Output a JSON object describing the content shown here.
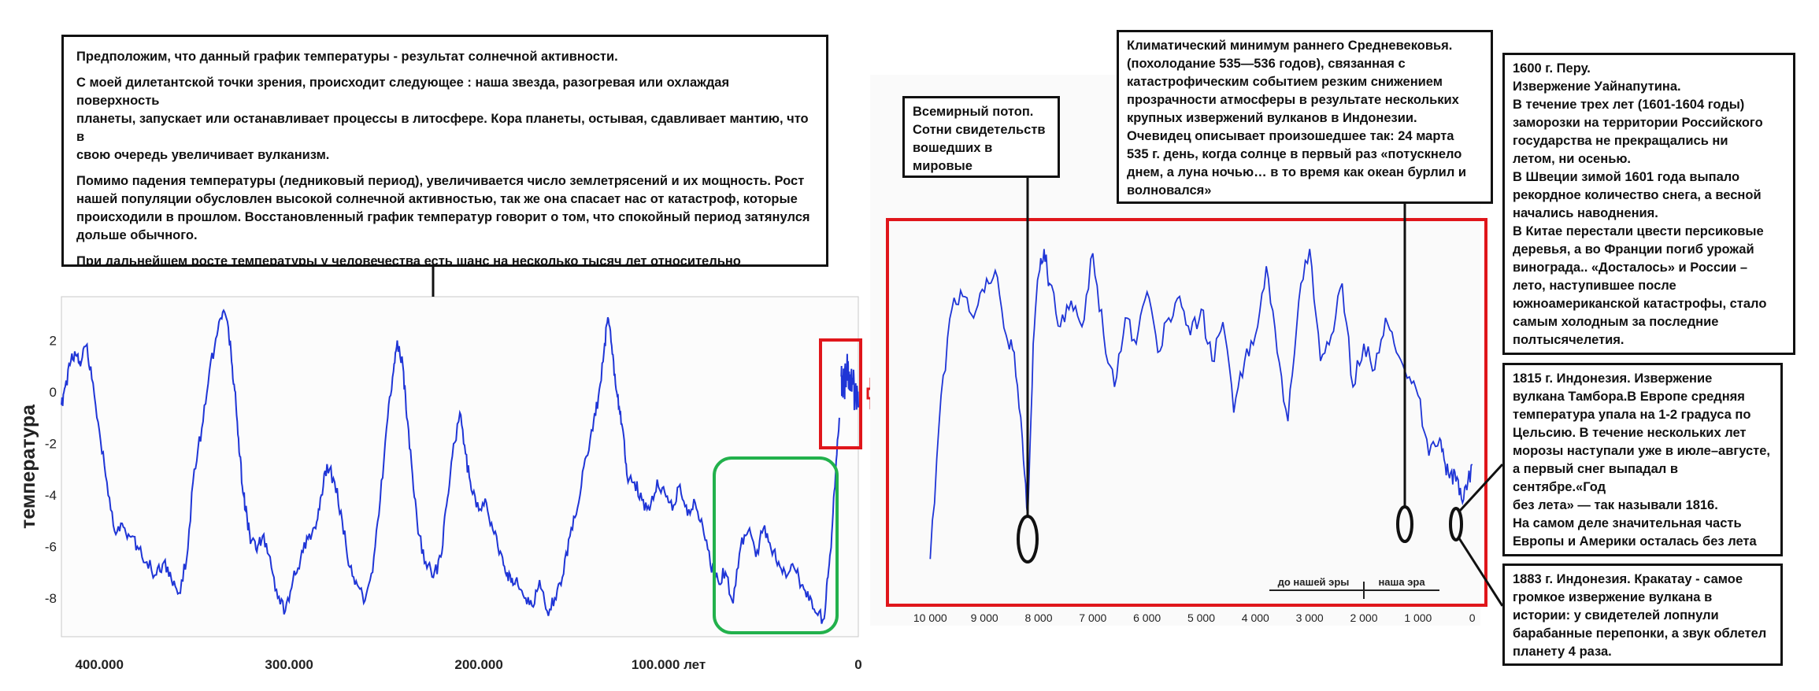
{
  "notes": {
    "main": {
      "p1": "Предположим, что данный график температуры - результат солнечной активности.",
      "p2": "С моей дилетантской точки зрения, происходит следующее : наша звезда, разогревая или охлаждая поверхность\nпланеты, запускает или останавливает процессы в литосфере. Кора планеты, остывая, сдавливает мантию, что в\nсвою очередь увеличивает вулканизм.",
      "p3": "Помимо падения температуры (ледниковый период), увеличивается число землетрясений и их мощность. Рост\nнашей популяции обусловлен высокой солнечной активностью, так же она спасает нас от катастроф, которые\nпроисходили в прошлом. Восстановленный график температур говорит о том, что спокойный период затянулся\nдольше обычного.",
      "p4": "При дальнейшем росте температуры  у человечества есть шанс на несколько тысяч лет  относительно\nспокойного развития."
    },
    "flood": "Всемирный потоп.\nСотни свидетельств\nвошедших в мировые\nрелигии",
    "medieval": "Климатический минимум раннего Средневековья.\n(похолодание 535—536 годов), связанная с\nкатастрофическим событием резким  снижением\nпрозрачности атмосферы в результате нескольких\nкрупных извержений вулканов в Индонезии.\nОчевидец описывает произошедшее так:  24 марта\n535 г. день, когда солнце в первый раз «потускнело\nднем, а луна ночью… в то время как океан бурлил и\nволновался»",
    "peru": "1600 г. Перу.\n Извержение Уайнапутина.\nВ течение трех лет (1601-1604 годы)\nзаморозки на территории Российского\nгосударства не прекращались ни\nлетом, ни осенью.\nВ Швеции зимой 1601 года выпало\nрекордное количество снега, а весной\nначались наводнения.\nВ Китае перестали цвести персиковые\nдеревья, а во Франции погиб урожай\nвинограда.. «Досталось» и России –\nлето, наступившее после\nюжноамериканской катастрофы, стало\nсамым холодным за последние\nполтысячелетия.",
    "tambora": "1815 г. Индонезия. Извержение\nвулкана Тамбора.В Европе средняя\nтемпература упала на 1-2 градуса по\nЦельсию. В течение нескольких лет\nморозы наступали уже в июле–августе,\nа первый снег выпадал в сентябре.«Год\nбез лета» — так называли 1816.\nНа самом деле значительная часть\nЕвропы и Америки осталась без лета на\nтри года.",
    "krakatau": "1883 г. Индонезия. Кракатау - самое\nгромкое извержение вулкана в\nистории: у свидетелей лопнули\nбарабанные перепонки, а звук облетел\nпланету 4 раза."
  },
  "colors": {
    "series": "#1f35d6",
    "zoom_box": "#e0161b",
    "focus_box": "#22b14c",
    "note_border": "#111111",
    "axis": "#222222"
  },
  "chart_data": [
    {
      "type": "line",
      "title": "",
      "xlabel": "",
      "ylabel": "температура",
      "x_ticks": [
        400000,
        300000,
        200000,
        100000,
        0
      ],
      "x_tick_labels": [
        "400.000",
        "300.000",
        "200.000",
        "100.000 лет",
        "0"
      ],
      "y_ticks": [
        2,
        0,
        -2,
        -4,
        -6,
        -8
      ],
      "y_tick_labels": [
        "2",
        "0",
        "-2",
        "-4",
        "-6",
        "-8"
      ],
      "xlim": [
        420000,
        0
      ],
      "ylim": [
        -9.5,
        3.7
      ],
      "series": [
        {
          "x": [
            420000,
            418000,
            415000,
            412000,
            410000,
            407000,
            404000,
            400000,
            396000,
            392000,
            388000,
            384000,
            380000,
            375000,
            370000,
            366000,
            362000,
            358000,
            354000,
            350000,
            346000,
            342000,
            338000,
            335000,
            332000,
            330000,
            328000,
            326000,
            324000,
            322000,
            320000,
            317000,
            314000,
            310000,
            306000,
            302000,
            298000,
            294000,
            290000,
            286000,
            283000,
            280000,
            276000,
            272000,
            268000,
            264000,
            260000,
            256000,
            252000,
            248000,
            245000,
            243000,
            240000,
            238000,
            235000,
            232000,
            228000,
            224000,
            220000,
            217000,
            214000,
            210000,
            207000,
            204000,
            200000,
            196000,
            192000,
            188000,
            185000,
            182000,
            180000,
            176000,
            172000,
            168000,
            164000,
            160000,
            156000,
            152000,
            148000,
            144000,
            140000,
            137000,
            134000,
            132000,
            130000,
            128000,
            126000,
            124000,
            122000,
            118000,
            114000,
            110000,
            106000,
            102000,
            98000,
            94000,
            90000,
            86000,
            82000,
            78000,
            74000,
            70000,
            66000,
            62000,
            58000,
            54000,
            50000,
            46000,
            42000,
            38000,
            34000,
            30000,
            26000,
            22000,
            18000,
            16000,
            14000,
            12000,
            10000
          ],
          "y": [
            -0.5,
            0.2,
            1.2,
            1.4,
            1.0,
            1.8,
            0.5,
            -1.5,
            -3.5,
            -5.4,
            -5.1,
            -5.6,
            -6.0,
            -6.6,
            -7.1,
            -6.6,
            -7.3,
            -7.8,
            -6.5,
            -3.0,
            -1.4,
            0.8,
            2.2,
            3.1,
            2.5,
            1.0,
            -0.5,
            -2.5,
            -4.0,
            -5.0,
            -5.8,
            -6.2,
            -5.6,
            -6.4,
            -8.0,
            -8.5,
            -7.3,
            -6.5,
            -5.7,
            -5.3,
            -4.0,
            -2.8,
            -3.5,
            -5.0,
            -6.8,
            -7.5,
            -8.1,
            -7.0,
            -4.2,
            -1.0,
            0.8,
            2.0,
            1.0,
            -1.0,
            -3.2,
            -5.5,
            -6.6,
            -7.2,
            -6.4,
            -4.4,
            -2.5,
            -0.8,
            -2.4,
            -3.8,
            -4.6,
            -4.3,
            -5.5,
            -6.3,
            -7.0,
            -7.5,
            -7.2,
            -8.0,
            -8.3,
            -7.3,
            -8.5,
            -8.0,
            -7.2,
            -5.6,
            -4.5,
            -2.6,
            -1.5,
            -0.2,
            1.6,
            2.9,
            1.8,
            0.3,
            -0.6,
            -1.5,
            -3.2,
            -3.5,
            -4.2,
            -4.6,
            -3.4,
            -3.9,
            -4.6,
            -3.6,
            -4.8,
            -4.3,
            -5.2,
            -6.7,
            -7.3,
            -7.0,
            -8.2,
            -6.0,
            -5.4,
            -6.4,
            -5.3,
            -6.1,
            -6.6,
            -7.2,
            -6.8,
            -7.5,
            -8.1,
            -8.6,
            -8.8,
            -7.2,
            -5.5,
            -3.2,
            -1.0
          ]
        },
        {
          "x": [
            9000,
            7500,
            6000,
            4500,
            3000,
            1500,
            0
          ],
          "y": [
            0.6,
            0.3,
            0.9,
            0.1,
            0.4,
            -0.3,
            -0.6
          ]
        }
      ]
    },
    {
      "type": "line",
      "title": "",
      "xlabel": "",
      "ylabel": "",
      "x_ticks": [
        10000,
        9000,
        8000,
        7000,
        6000,
        5000,
        4000,
        3000,
        2000,
        1000,
        0
      ],
      "x_tick_labels": [
        "10 000",
        "9 000",
        "8 000",
        "7 000",
        "6 000",
        "5 000",
        "4 000",
        "3 000",
        "2 000",
        "1 000",
        "0"
      ],
      "era_labels": [
        "до нашей эры",
        "наша эра"
      ],
      "xlim": [
        10600,
        -150
      ],
      "ylim": [
        -3.0,
        1.25
      ],
      "series": [
        {
          "x": [
            10000,
            9800,
            9600,
            9400,
            9200,
            9000,
            8800,
            8600,
            8450,
            8300,
            8200,
            8100,
            8000,
            7900,
            7800,
            7600,
            7400,
            7200,
            7000,
            6800,
            6600,
            6400,
            6200,
            6000,
            5800,
            5600,
            5400,
            5200,
            5000,
            4800,
            4600,
            4400,
            4200,
            4000,
            3800,
            3600,
            3400,
            3200,
            3000,
            2800,
            2600,
            2400,
            2200,
            2000,
            1800,
            1600,
            1400,
            1200,
            1000,
            800,
            600,
            500,
            400,
            300,
            200,
            100,
            0
          ],
          "y": [
            -2.5,
            -0.6,
            0.4,
            0.55,
            0.3,
            0.6,
            0.85,
            0.1,
            -0.1,
            -1.1,
            -2.0,
            0.0,
            0.8,
            1.1,
            0.7,
            0.2,
            0.5,
            0.2,
            1.05,
            0.1,
            -0.5,
            0.3,
            0.0,
            0.6,
            -0.1,
            0.3,
            0.55,
            0.1,
            0.4,
            -0.2,
            0.25,
            -0.8,
            -0.2,
            0.1,
            0.9,
            -0.1,
            -0.9,
            0.5,
            1.1,
            -0.2,
            0.1,
            0.7,
            -0.5,
            0.0,
            -0.3,
            0.3,
            -0.1,
            -0.4,
            -0.6,
            -1.3,
            -1.1,
            -1.4,
            -1.5,
            -1.6,
            -1.8,
            -1.7,
            -1.4
          ]
        }
      ]
    }
  ]
}
